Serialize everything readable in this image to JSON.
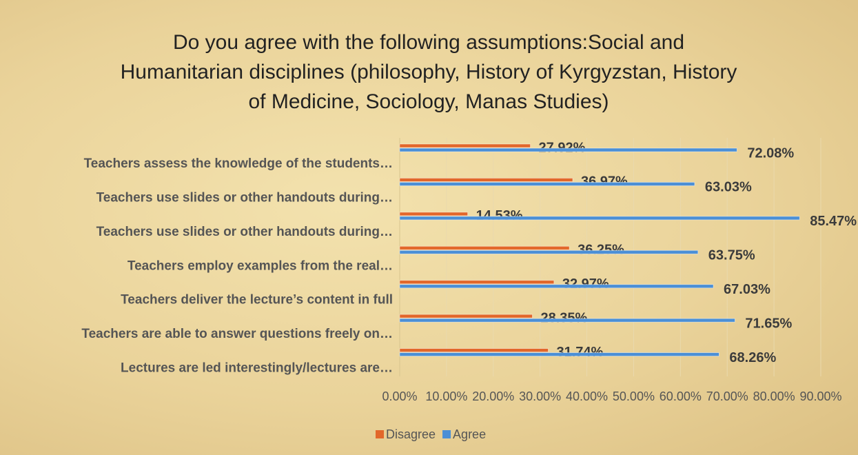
{
  "chart_data": {
    "type": "barh",
    "title": "Do you agree with the following assumptions:Social and Humanitarian disciplines (philosophy, History of Kyrgyzstan, History of Medicine, Sociology, Manas Studies)",
    "categories": [
      "Teachers assess the knowledge of the students…",
      "Teachers use slides or other handouts during…",
      "Teachers use slides or other handouts during…",
      "Teachers employ examples from the real…",
      "Teachers deliver the lecture’s content in full",
      "Teachers are able to answer questions freely on…",
      "Lectures are led interestingly/lectures are…"
    ],
    "series": [
      {
        "name": "Disagree",
        "color": "#e2672a",
        "values": [
          27.92,
          36.97,
          14.53,
          36.25,
          32.97,
          28.35,
          31.74
        ],
        "value_labels": [
          "27.92%",
          "36.97%",
          "14.53%",
          "36.25%",
          "32.97%",
          "28.35%",
          "31.74%"
        ]
      },
      {
        "name": "Agree",
        "color": "#4b8fd6",
        "values": [
          72.08,
          63.03,
          85.47,
          63.75,
          67.03,
          71.65,
          68.26
        ],
        "value_labels": [
          "72.08%",
          "63.03%",
          "85.47%",
          "63.75%",
          "67.03%",
          "71.65%",
          "68.26%"
        ]
      }
    ],
    "xlim": [
      0,
      90
    ],
    "xticks": [
      {
        "value": 0,
        "label": "0.00%"
      },
      {
        "value": 10,
        "label": "10.00%"
      },
      {
        "value": 20,
        "label": "20.00%"
      },
      {
        "value": 30,
        "label": "30.00%"
      },
      {
        "value": 40,
        "label": "40.00%"
      },
      {
        "value": 50,
        "label": "50.00%"
      },
      {
        "value": 60,
        "label": "60.00%"
      },
      {
        "value": 70,
        "label": "70.00%"
      },
      {
        "value": 80,
        "label": "80.00%"
      },
      {
        "value": 90,
        "label": "90.00%"
      }
    ],
    "grid": true,
    "legend": "bottom"
  }
}
